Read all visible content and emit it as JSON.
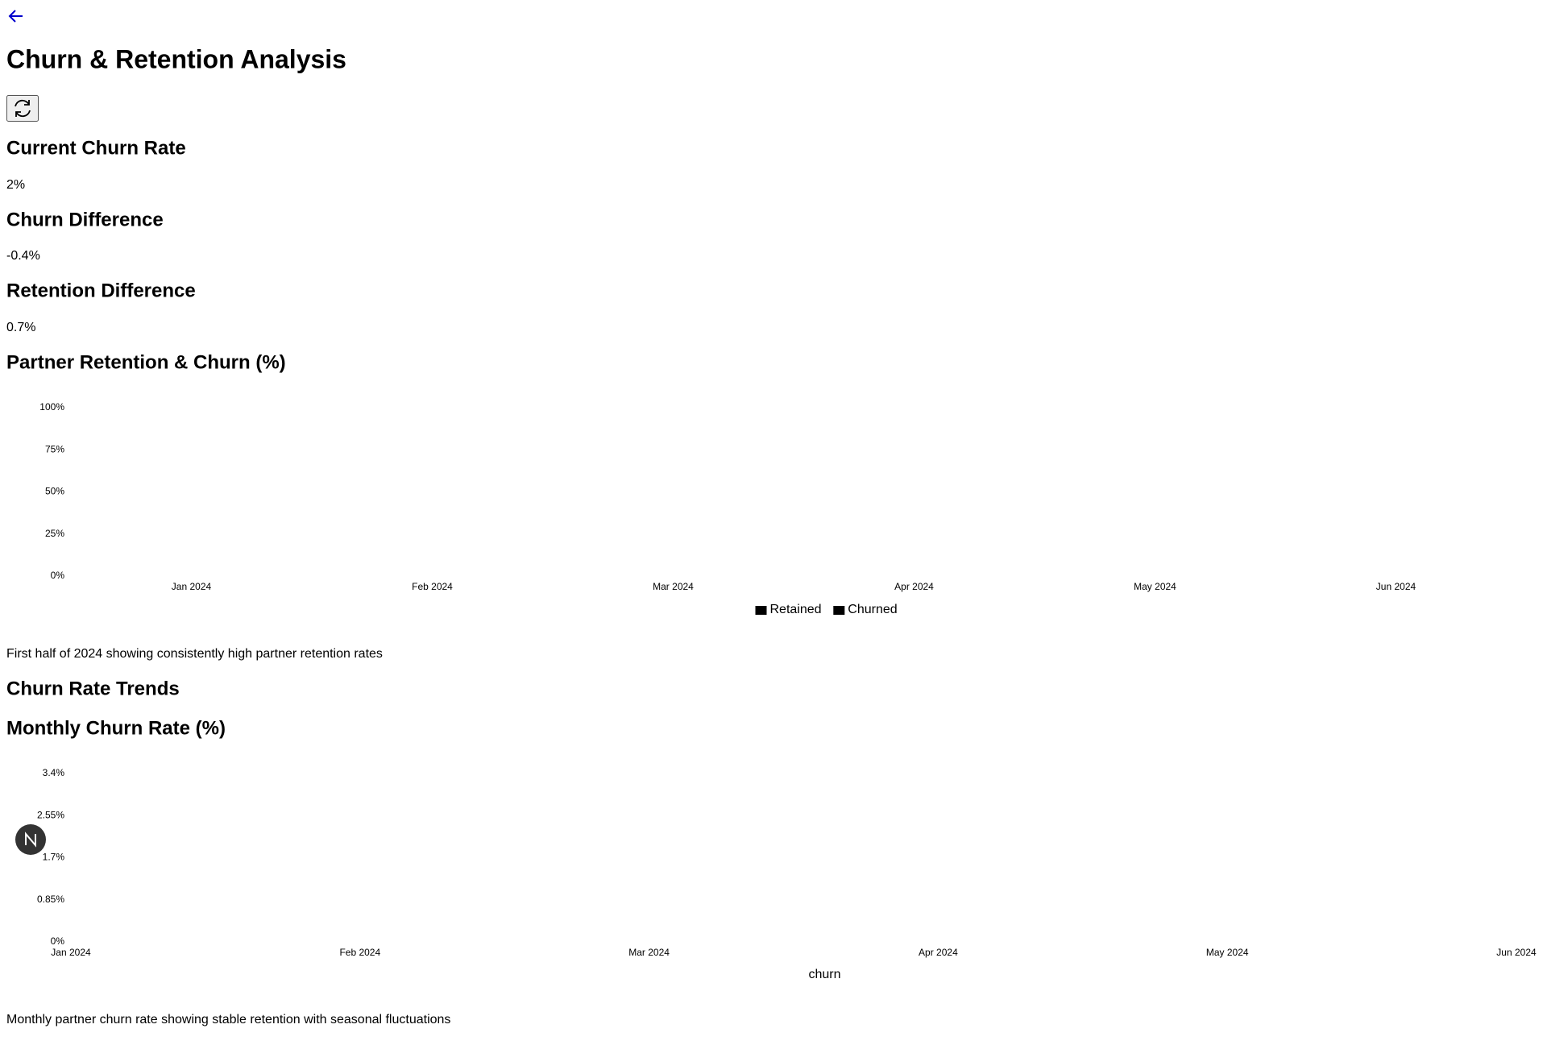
{
  "page": {
    "title": "Churn & Retention Analysis",
    "metrics": [
      {
        "label": "Current Churn Rate",
        "value": "2%"
      },
      {
        "label": "Churn Difference",
        "value": "-0.4%"
      },
      {
        "label": "Retention Difference",
        "value": "0.7%"
      }
    ],
    "section": "Churn Rate Trends"
  },
  "chart_data": [
    {
      "type": "bar",
      "title": "Partner Retention & Churn (%)",
      "categories": [
        "Jan 2024",
        "Feb 2024",
        "Mar 2024",
        "Apr 2024",
        "May 2024",
        "Jun 2024"
      ],
      "series": [
        {
          "name": "Retained",
          "color": "#000000"
        },
        {
          "name": "Churned",
          "color": "#000000"
        }
      ],
      "ylim": [
        0,
        100
      ],
      "yticks": [
        {
          "value": 0,
          "label": "0%"
        },
        {
          "value": 25,
          "label": "25%"
        },
        {
          "value": 50,
          "label": "50%"
        },
        {
          "value": 75,
          "label": "75%"
        },
        {
          "value": 100,
          "label": "100%"
        }
      ],
      "grid": false,
      "caption": "First half of 2024 showing consistently high partner retention rates"
    },
    {
      "type": "line",
      "title": "Monthly Churn Rate (%)",
      "categories": [
        "Jan 2024",
        "Feb 2024",
        "Mar 2024",
        "Apr 2024",
        "May 2024",
        "Jun 2024"
      ],
      "series": [
        {
          "name": "churn"
        }
      ],
      "ylim": [
        0,
        3.4
      ],
      "yticks": [
        {
          "value": 0,
          "label": "0%"
        },
        {
          "value": 0.85,
          "label": "0.85%"
        },
        {
          "value": 1.7,
          "label": "1.7%"
        },
        {
          "value": 2.55,
          "label": "2.55%"
        },
        {
          "value": 3.4,
          "label": "3.4%"
        }
      ],
      "grid": false,
      "caption": "Monthly partner churn rate showing stable retention with seasonal fluctuations"
    }
  ]
}
